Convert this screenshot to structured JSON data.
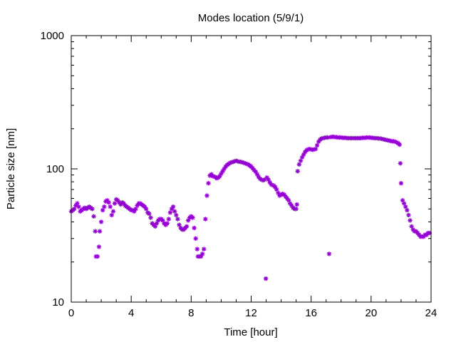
{
  "chart_data": {
    "type": "scatter",
    "title": "Modes location (5/9/1)",
    "xlabel": "Time [hour]",
    "ylabel": "Particle size [nm]",
    "xlim": [
      0,
      24
    ],
    "ylim": [
      10,
      1000
    ],
    "y_scale": "log",
    "x_ticks": [
      0,
      4,
      8,
      12,
      16,
      20,
      24
    ],
    "x_tick_labels": [
      "0",
      "4",
      "8",
      "12",
      "16",
      "20",
      "24"
    ],
    "y_ticks": [
      10,
      100,
      1000
    ],
    "y_tick_labels": [
      "10",
      "100",
      "1000"
    ],
    "grid": false,
    "legend": "none",
    "marker": "asterisk",
    "series": [
      {
        "color": "#9400d3",
        "points": [
          [
            0.0,
            48
          ],
          [
            0.1,
            49
          ],
          [
            0.2,
            50
          ],
          [
            0.3,
            53
          ],
          [
            0.4,
            55
          ],
          [
            0.5,
            52
          ],
          [
            0.6,
            48
          ],
          [
            0.7,
            49
          ],
          [
            0.8,
            50
          ],
          [
            0.9,
            51
          ],
          [
            1.0,
            50
          ],
          [
            1.1,
            51
          ],
          [
            1.2,
            52
          ],
          [
            1.3,
            51
          ],
          [
            1.4,
            50
          ],
          [
            1.5,
            44
          ],
          [
            1.6,
            34
          ],
          [
            1.65,
            22
          ],
          [
            1.75,
            22
          ],
          [
            1.85,
            26
          ],
          [
            1.9,
            34
          ],
          [
            2.0,
            40
          ],
          [
            2.1,
            49
          ],
          [
            2.2,
            52
          ],
          [
            2.3,
            57
          ],
          [
            2.4,
            58
          ],
          [
            2.5,
            56
          ],
          [
            2.6,
            52
          ],
          [
            2.7,
            45
          ],
          [
            2.8,
            48
          ],
          [
            2.9,
            55
          ],
          [
            3.0,
            59
          ],
          [
            3.1,
            58
          ],
          [
            3.2,
            56
          ],
          [
            3.3,
            54
          ],
          [
            3.4,
            56
          ],
          [
            3.5,
            55
          ],
          [
            3.6,
            53
          ],
          [
            3.7,
            52
          ],
          [
            3.8,
            51
          ],
          [
            3.9,
            50
          ],
          [
            4.0,
            49
          ],
          [
            4.1,
            49
          ],
          [
            4.2,
            48
          ],
          [
            4.3,
            50
          ],
          [
            4.4,
            53
          ],
          [
            4.5,
            55
          ],
          [
            4.6,
            55
          ],
          [
            4.7,
            54
          ],
          [
            4.8,
            53
          ],
          [
            4.9,
            52
          ],
          [
            5.0,
            50
          ],
          [
            5.1,
            47
          ],
          [
            5.2,
            46
          ],
          [
            5.3,
            43
          ],
          [
            5.4,
            39
          ],
          [
            5.5,
            38
          ],
          [
            5.6,
            37
          ],
          [
            5.7,
            39
          ],
          [
            5.8,
            41
          ],
          [
            5.9,
            42
          ],
          [
            6.0,
            42
          ],
          [
            6.1,
            41
          ],
          [
            6.2,
            39
          ],
          [
            6.3,
            38
          ],
          [
            6.4,
            39
          ],
          [
            6.5,
            42
          ],
          [
            6.6,
            47
          ],
          [
            6.7,
            50
          ],
          [
            6.8,
            52
          ],
          [
            6.9,
            48
          ],
          [
            7.0,
            45
          ],
          [
            7.1,
            42
          ],
          [
            7.2,
            38
          ],
          [
            7.3,
            36
          ],
          [
            7.4,
            35
          ],
          [
            7.5,
            35
          ],
          [
            7.6,
            36
          ],
          [
            7.7,
            37
          ],
          [
            7.8,
            41
          ],
          [
            7.9,
            43
          ],
          [
            8.0,
            44
          ],
          [
            8.1,
            43
          ],
          [
            8.2,
            36
          ],
          [
            8.3,
            30
          ],
          [
            8.4,
            25
          ],
          [
            8.45,
            22
          ],
          [
            8.55,
            22
          ],
          [
            8.65,
            22
          ],
          [
            8.75,
            23
          ],
          [
            8.85,
            25
          ],
          [
            8.95,
            42
          ],
          [
            9.05,
            63
          ],
          [
            9.15,
            78
          ],
          [
            9.25,
            89
          ],
          [
            9.35,
            91
          ],
          [
            9.45,
            88
          ],
          [
            9.6,
            87
          ],
          [
            9.7,
            85
          ],
          [
            9.8,
            86
          ],
          [
            9.9,
            88
          ],
          [
            10.0,
            92
          ],
          [
            10.1,
            96
          ],
          [
            10.2,
            100
          ],
          [
            10.3,
            104
          ],
          [
            10.4,
            107
          ],
          [
            10.5,
            109
          ],
          [
            10.6,
            111
          ],
          [
            10.7,
            112
          ],
          [
            10.8,
            113
          ],
          [
            10.9,
            114
          ],
          [
            11.0,
            115
          ],
          [
            11.1,
            114
          ],
          [
            11.2,
            113
          ],
          [
            11.3,
            113
          ],
          [
            11.4,
            112
          ],
          [
            11.5,
            111
          ],
          [
            11.6,
            110
          ],
          [
            11.7,
            109
          ],
          [
            11.8,
            108
          ],
          [
            11.9,
            106
          ],
          [
            12.0,
            104
          ],
          [
            12.1,
            101
          ],
          [
            12.2,
            98
          ],
          [
            12.3,
            95
          ],
          [
            12.4,
            91
          ],
          [
            12.5,
            87
          ],
          [
            12.6,
            84
          ],
          [
            12.7,
            83
          ],
          [
            12.8,
            82
          ],
          [
            12.9,
            83
          ],
          [
            12.98,
            15
          ],
          [
            13.05,
            86
          ],
          [
            13.15,
            83
          ],
          [
            13.25,
            79
          ],
          [
            13.35,
            76
          ],
          [
            13.5,
            75
          ],
          [
            13.6,
            73
          ],
          [
            13.7,
            70
          ],
          [
            13.8,
            66
          ],
          [
            13.9,
            63
          ],
          [
            14.0,
            64
          ],
          [
            14.1,
            65
          ],
          [
            14.2,
            64
          ],
          [
            14.3,
            62
          ],
          [
            14.4,
            60
          ],
          [
            14.5,
            58
          ],
          [
            14.6,
            55
          ],
          [
            14.7,
            53
          ],
          [
            14.8,
            51
          ],
          [
            14.9,
            50
          ],
          [
            15.0,
            50
          ],
          [
            15.05,
            54
          ],
          [
            15.1,
            96
          ],
          [
            15.2,
            108
          ],
          [
            15.3,
            115
          ],
          [
            15.4,
            122
          ],
          [
            15.5,
            128
          ],
          [
            15.6,
            134
          ],
          [
            15.7,
            138
          ],
          [
            15.8,
            140
          ],
          [
            15.9,
            141
          ],
          [
            16.0,
            140
          ],
          [
            16.1,
            139
          ],
          [
            16.2,
            140
          ],
          [
            16.3,
            141
          ],
          [
            16.4,
            150
          ],
          [
            16.5,
            160
          ],
          [
            16.6,
            166
          ],
          [
            16.7,
            169
          ],
          [
            16.8,
            170
          ],
          [
            16.9,
            171
          ],
          [
            17.0,
            172
          ],
          [
            17.1,
            172
          ],
          [
            17.2,
            23
          ],
          [
            17.3,
            173
          ],
          [
            17.4,
            174
          ],
          [
            17.5,
            174
          ],
          [
            17.6,
            173
          ],
          [
            17.7,
            173
          ],
          [
            17.8,
            172
          ],
          [
            17.9,
            172
          ],
          [
            18.0,
            172
          ],
          [
            18.1,
            171
          ],
          [
            18.2,
            171
          ],
          [
            18.3,
            171
          ],
          [
            18.4,
            170
          ],
          [
            18.5,
            170
          ],
          [
            18.6,
            170
          ],
          [
            18.7,
            170
          ],
          [
            18.8,
            170
          ],
          [
            18.9,
            170
          ],
          [
            19.0,
            170
          ],
          [
            19.1,
            170
          ],
          [
            19.2,
            170
          ],
          [
            19.3,
            170
          ],
          [
            19.4,
            171
          ],
          [
            19.5,
            171
          ],
          [
            19.6,
            171
          ],
          [
            19.7,
            172
          ],
          [
            19.8,
            172
          ],
          [
            19.9,
            172
          ],
          [
            20.0,
            171
          ],
          [
            20.1,
            171
          ],
          [
            20.2,
            170
          ],
          [
            20.3,
            170
          ],
          [
            20.4,
            170
          ],
          [
            20.5,
            169
          ],
          [
            20.6,
            169
          ],
          [
            20.7,
            168
          ],
          [
            20.8,
            167
          ],
          [
            20.9,
            166
          ],
          [
            21.0,
            165
          ],
          [
            21.1,
            164
          ],
          [
            21.2,
            163
          ],
          [
            21.3,
            162
          ],
          [
            21.4,
            161
          ],
          [
            21.5,
            161
          ],
          [
            21.6,
            160
          ],
          [
            21.7,
            158
          ],
          [
            21.8,
            156
          ],
          [
            21.9,
            152
          ],
          [
            21.95,
            110
          ],
          [
            22.0,
            78
          ],
          [
            22.1,
            58
          ],
          [
            22.2,
            55
          ],
          [
            22.3,
            52
          ],
          [
            22.4,
            49
          ],
          [
            22.5,
            45
          ],
          [
            22.6,
            41
          ],
          [
            22.7,
            37
          ],
          [
            22.8,
            35
          ],
          [
            22.9,
            34
          ],
          [
            23.0,
            34
          ],
          [
            23.1,
            33
          ],
          [
            23.2,
            32
          ],
          [
            23.3,
            31
          ],
          [
            23.4,
            31
          ],
          [
            23.5,
            31
          ],
          [
            23.6,
            32
          ],
          [
            23.7,
            32
          ],
          [
            23.8,
            33
          ],
          [
            23.9,
            33
          ]
        ]
      }
    ]
  }
}
